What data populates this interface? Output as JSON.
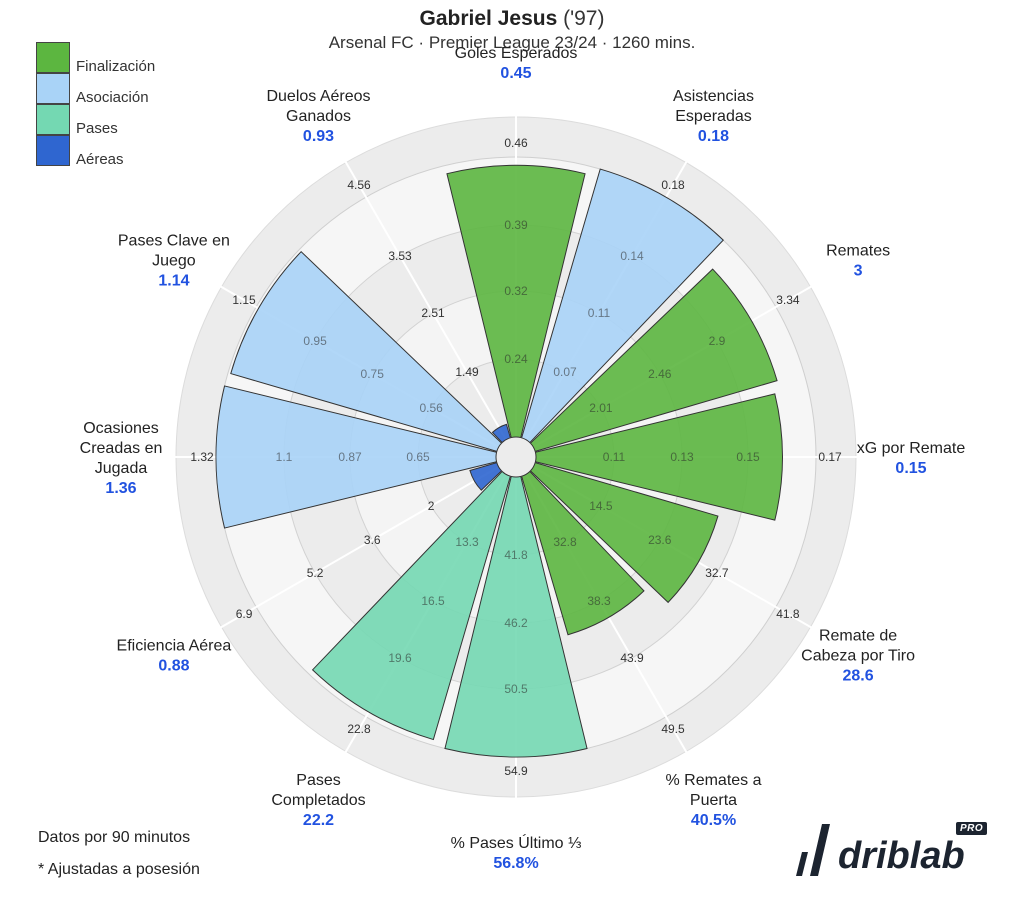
{
  "header": {
    "player": "Gabriel Jesus",
    "extra": "('97)",
    "subtitle": "Arsenal FC · Premier League 23/24 · 1260 mins."
  },
  "legend": [
    {
      "label": "Finalización",
      "color": "#5cb640"
    },
    {
      "label": "Asociación",
      "color": "#a9d3f7"
    },
    {
      "label": "Pases",
      "color": "#74d8b2"
    },
    {
      "label": "Aéreas",
      "color": "#2f66d0"
    }
  ],
  "footnotes": [
    "Datos por 90 minutos",
    "* Ajustadas a posesión"
  ],
  "brand": {
    "name": "driblab",
    "badge": "PRO"
  },
  "chart_data": {
    "type": "radar",
    "categories": [
      {
        "label": [
          "Goles Esperados"
        ],
        "value": "0.45",
        "group": "Finalización",
        "fill": 0.97,
        "ticks": [
          "0.24",
          "0.32",
          "0.39",
          "0.46"
        ]
      },
      {
        "label": [
          "Asistencias",
          "Esperadas"
        ],
        "value": "0.18",
        "group": "Asociación",
        "fill": 1.0,
        "ticks": [
          "0.07",
          "0.11",
          "0.14",
          "0.18"
        ]
      },
      {
        "label": [
          "Remates"
        ],
        "value": "3",
        "group": "Finalización",
        "fill": 0.9,
        "ticks": [
          "2.01",
          "2.46",
          "2.9",
          "3.34"
        ]
      },
      {
        "label": [
          "xG por Remate"
        ],
        "value": "0.15",
        "group": "Finalización",
        "fill": 0.88,
        "ticks": [
          "0.11",
          "0.13",
          "0.15",
          "0.17"
        ]
      },
      {
        "label": [
          "Remate de",
          "Cabeza por Tiro"
        ],
        "value": "28.6",
        "group": "Finalización",
        "fill": 0.68,
        "ticks": [
          "14.5",
          "23.6",
          "32.7",
          "41.8"
        ]
      },
      {
        "label": [
          "% Remates a",
          "Puerta"
        ],
        "value": "40.5%",
        "group": "Finalización",
        "fill": 0.59,
        "ticks": [
          "32.8",
          "38.3",
          "43.9",
          "49.5"
        ]
      },
      {
        "label": [
          "% Pases Último ⅓"
        ],
        "value": "56.8%",
        "group": "Pases",
        "fill": 1.0,
        "ticks": [
          "41.8",
          "46.2",
          "50.5",
          "54.9"
        ]
      },
      {
        "label": [
          "Pases",
          "Completados"
        ],
        "value": "22.2",
        "group": "Pases",
        "fill": 0.98,
        "ticks": [
          "13.3",
          "16.5",
          "19.6",
          "22.8"
        ]
      },
      {
        "label": [
          "Eficiencia Aérea"
        ],
        "value": "0.88",
        "group": "Aéreas",
        "fill": 0.1,
        "ticks": [
          "2",
          "3.6",
          "5.2",
          "6.9"
        ]
      },
      {
        "label": [
          "Ocasiones",
          "Creadas en",
          "Jugada"
        ],
        "value": "1.36",
        "group": "Asociación",
        "fill": 1.0,
        "ticks": [
          "0.65",
          "0.87",
          "1.1",
          "1.32"
        ]
      },
      {
        "label": [
          "Pases Clave en",
          "Juego"
        ],
        "value": "1.14",
        "group": "Asociación",
        "fill": 0.99,
        "ticks": [
          "0.56",
          "0.75",
          "0.95",
          "1.15"
        ]
      },
      {
        "label": [
          "Duelos Aéreos",
          "Ganados"
        ],
        "value": "0.93",
        "group": "Aéreas",
        "fill": 0.05,
        "ticks": [
          "1.49",
          "2.51",
          "3.53",
          "4.56"
        ]
      }
    ],
    "colors": {
      "Finalización": "#5cb640",
      "Asociación": "#a9d3f7",
      "Pases": "#74d8b2",
      "Aéreas": "#2f66d0"
    },
    "value_color": "#2152e0"
  }
}
